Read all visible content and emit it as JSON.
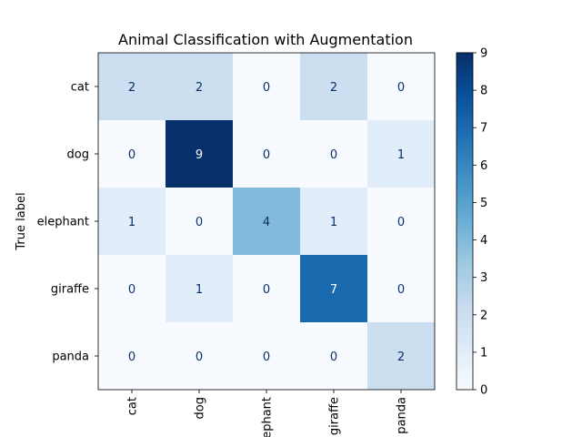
{
  "chart_data": {
    "type": "heatmap",
    "title": "Animal Classification with Augmentation",
    "ylabel": "True label",
    "xlabel": "",
    "row_labels": [
      "cat",
      "dog",
      "elephant",
      "giraffe",
      "panda"
    ],
    "col_labels": [
      "cat",
      "dog",
      "elephant",
      "giraffe",
      "panda"
    ],
    "values": [
      [
        2,
        2,
        0,
        2,
        0
      ],
      [
        0,
        9,
        0,
        0,
        1
      ],
      [
        1,
        0,
        4,
        1,
        0
      ],
      [
        0,
        1,
        0,
        7,
        0
      ],
      [
        0,
        0,
        0,
        0,
        2
      ]
    ],
    "colorbar": {
      "min": 0,
      "max": 9,
      "ticks": [
        "0",
        "1",
        "2",
        "3",
        "4",
        "5",
        "6",
        "7",
        "8",
        "9"
      ]
    },
    "colormap": "Blues",
    "colors": {
      "low": "#f7fbff",
      "high": "#08306b",
      "text_dark": "#08306b",
      "text_light": "#ffffff"
    }
  }
}
